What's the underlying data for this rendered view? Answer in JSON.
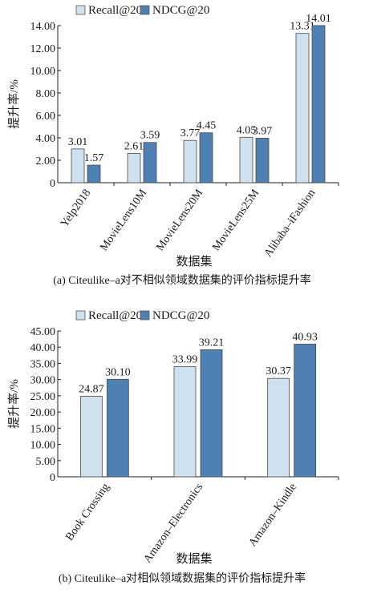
{
  "chart_data": [
    {
      "type": "bar",
      "caption": "(a) Citeulike–a对不相似领域数据集的评价指标提升率",
      "xlabel": "数据集",
      "ylabel": "提升率/%",
      "ylim": [
        0,
        14
      ],
      "yticks": [
        "0",
        "2.00",
        "4.00",
        "6.00",
        "8.00",
        "10.00",
        "12.00",
        "14.00"
      ],
      "categories": [
        "Yelp2018",
        "MovieLens10M",
        "MovieLens20M",
        "MovieLens25M",
        "Alibaba–iFashion"
      ],
      "series": [
        {
          "name": "Recall@20",
          "color": "#cfe0ee",
          "values": [
            3.01,
            2.61,
            3.77,
            4.05,
            13.31
          ],
          "labels": [
            "3.01",
            "2.61",
            "3.77",
            "4.05",
            "13.31"
          ]
        },
        {
          "name": "NDCG@20",
          "color": "#4f80b4",
          "values": [
            1.57,
            3.59,
            4.45,
            3.97,
            14.01
          ],
          "labels": [
            "1.57",
            "3.59",
            "4.45",
            "3.97",
            "14.01"
          ]
        }
      ],
      "legend": "top",
      "grid": false
    },
    {
      "type": "bar",
      "caption": "(b) Citeulike–a对相似领域数据集的评价指标提升率",
      "xlabel": "数据集",
      "ylabel": "提升率/%",
      "ylim": [
        0,
        45
      ],
      "yticks": [
        "0",
        "5.00",
        "10.00",
        "15.00",
        "20.00",
        "25.00",
        "30.00",
        "35.00",
        "40.00",
        "45.00"
      ],
      "categories": [
        "Book Crossing",
        "Amazon–Electronics",
        "Amazon–Kindle"
      ],
      "series": [
        {
          "name": "Recall@20",
          "color": "#cfe0ee",
          "values": [
            24.87,
            33.99,
            30.37
          ],
          "labels": [
            "24.87",
            "33.99",
            "30.37"
          ]
        },
        {
          "name": "NDCG@20",
          "color": "#4f80b4",
          "values": [
            30.1,
            39.21,
            40.93
          ],
          "labels": [
            "30.10",
            "39.21",
            "40.93"
          ]
        }
      ],
      "legend": "top",
      "grid": false
    }
  ]
}
